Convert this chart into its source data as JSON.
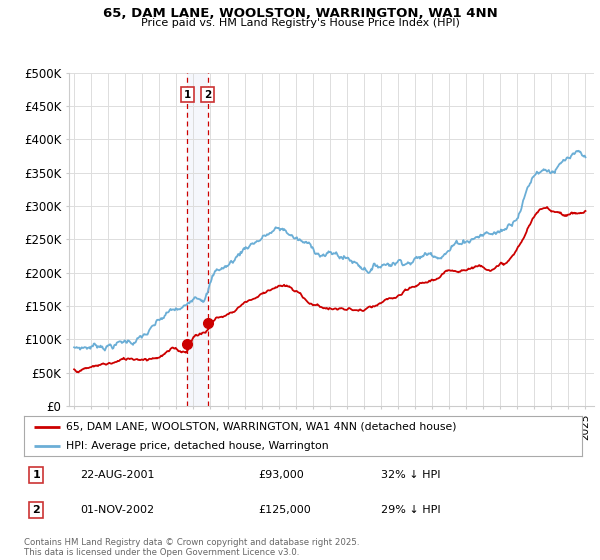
{
  "title1": "65, DAM LANE, WOOLSTON, WARRINGTON, WA1 4NN",
  "title2": "Price paid vs. HM Land Registry's House Price Index (HPI)",
  "ylabel_ticks": [
    "£0",
    "£50K",
    "£100K",
    "£150K",
    "£200K",
    "£250K",
    "£300K",
    "£350K",
    "£400K",
    "£450K",
    "£500K"
  ],
  "ytick_vals": [
    0,
    50000,
    100000,
    150000,
    200000,
    250000,
    300000,
    350000,
    400000,
    450000,
    500000
  ],
  "xlim_start": 1994.7,
  "xlim_end": 2025.5,
  "ylim_min": 0,
  "ylim_max": 500000,
  "hpi_color": "#6baed6",
  "price_color": "#cc0000",
  "transaction1_date": "22-AUG-2001",
  "transaction1_price": 93000,
  "transaction1_hpi": "32% ↓ HPI",
  "transaction1_year": 2001.64,
  "transaction2_date": "01-NOV-2002",
  "transaction2_price": 125000,
  "transaction2_hpi": "29% ↓ HPI",
  "transaction2_year": 2002.83,
  "legend_label1": "65, DAM LANE, WOOLSTON, WARRINGTON, WA1 4NN (detached house)",
  "legend_label2": "HPI: Average price, detached house, Warrington",
  "footer": "Contains HM Land Registry data © Crown copyright and database right 2025.\nThis data is licensed under the Open Government Licence v3.0.",
  "background_color": "#ffffff",
  "chart_bg": "#ffffff",
  "grid_color": "#dddddd"
}
